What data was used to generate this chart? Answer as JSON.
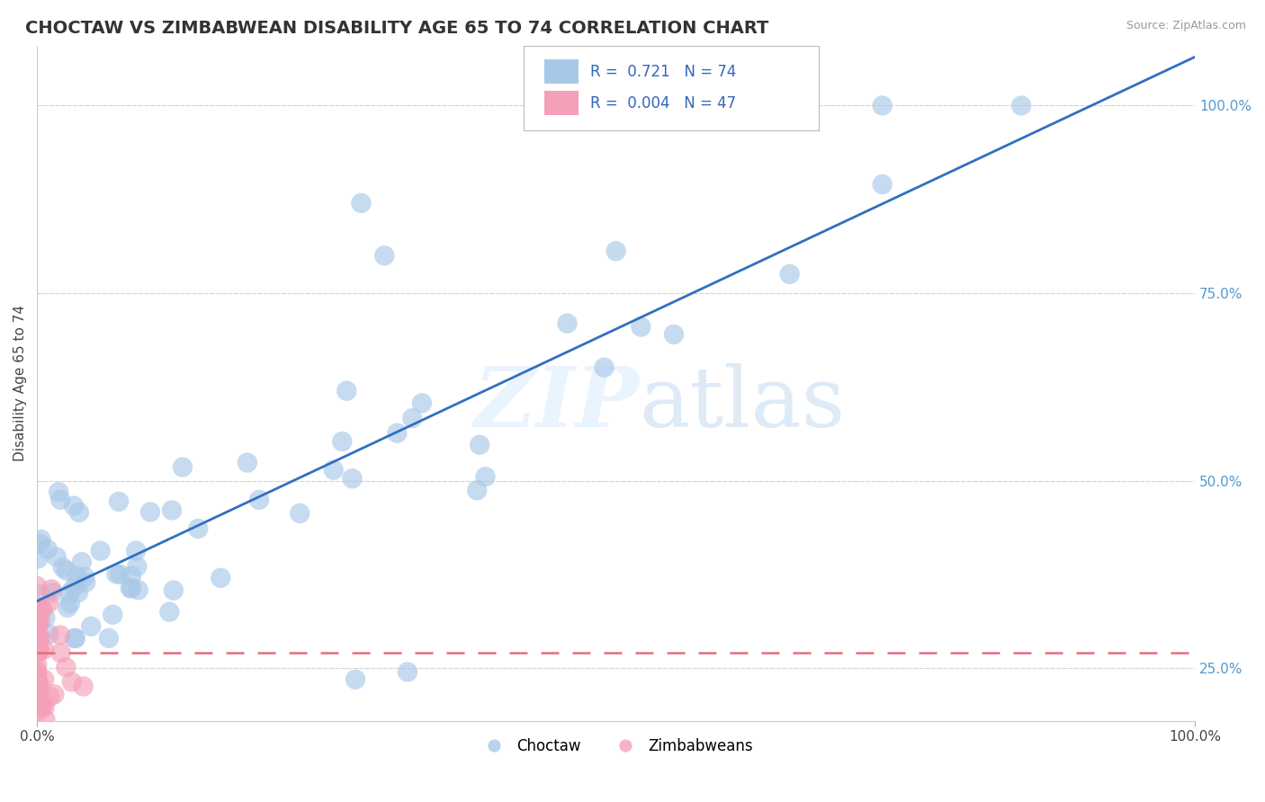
{
  "title": "CHOCTAW VS ZIMBABWEAN DISABILITY AGE 65 TO 74 CORRELATION CHART",
  "source_text": "Source: ZipAtlas.com",
  "ylabel": "Disability Age 65 to 74",
  "bottom_legend": [
    "Choctaw",
    "Zimbabweans"
  ],
  "blue_color": "#a8c8e8",
  "pink_color": "#f4a0b8",
  "blue_line_color": "#3070c0",
  "pink_line_color": "#e07080",
  "background_color": "#ffffff",
  "grid_color": "#d8d8d8",
  "xlim": [
    0.0,
    1.0
  ],
  "ylim": [
    0.18,
    1.08
  ],
  "right_yticks": [
    0.25,
    0.5,
    0.75,
    1.0
  ],
  "right_yticklabels": [
    "25.0%",
    "50.0%",
    "75.0%",
    "100.0%"
  ],
  "watermark_color": "#ddeeff",
  "watermark_alpha": 0.6,
  "title_fontsize": 14,
  "axis_label_fontsize": 11,
  "tick_fontsize": 11,
  "legend_fontsize": 12,
  "blue_r": "0.721",
  "blue_n": "74",
  "pink_r": "0.004",
  "pink_n": "47"
}
